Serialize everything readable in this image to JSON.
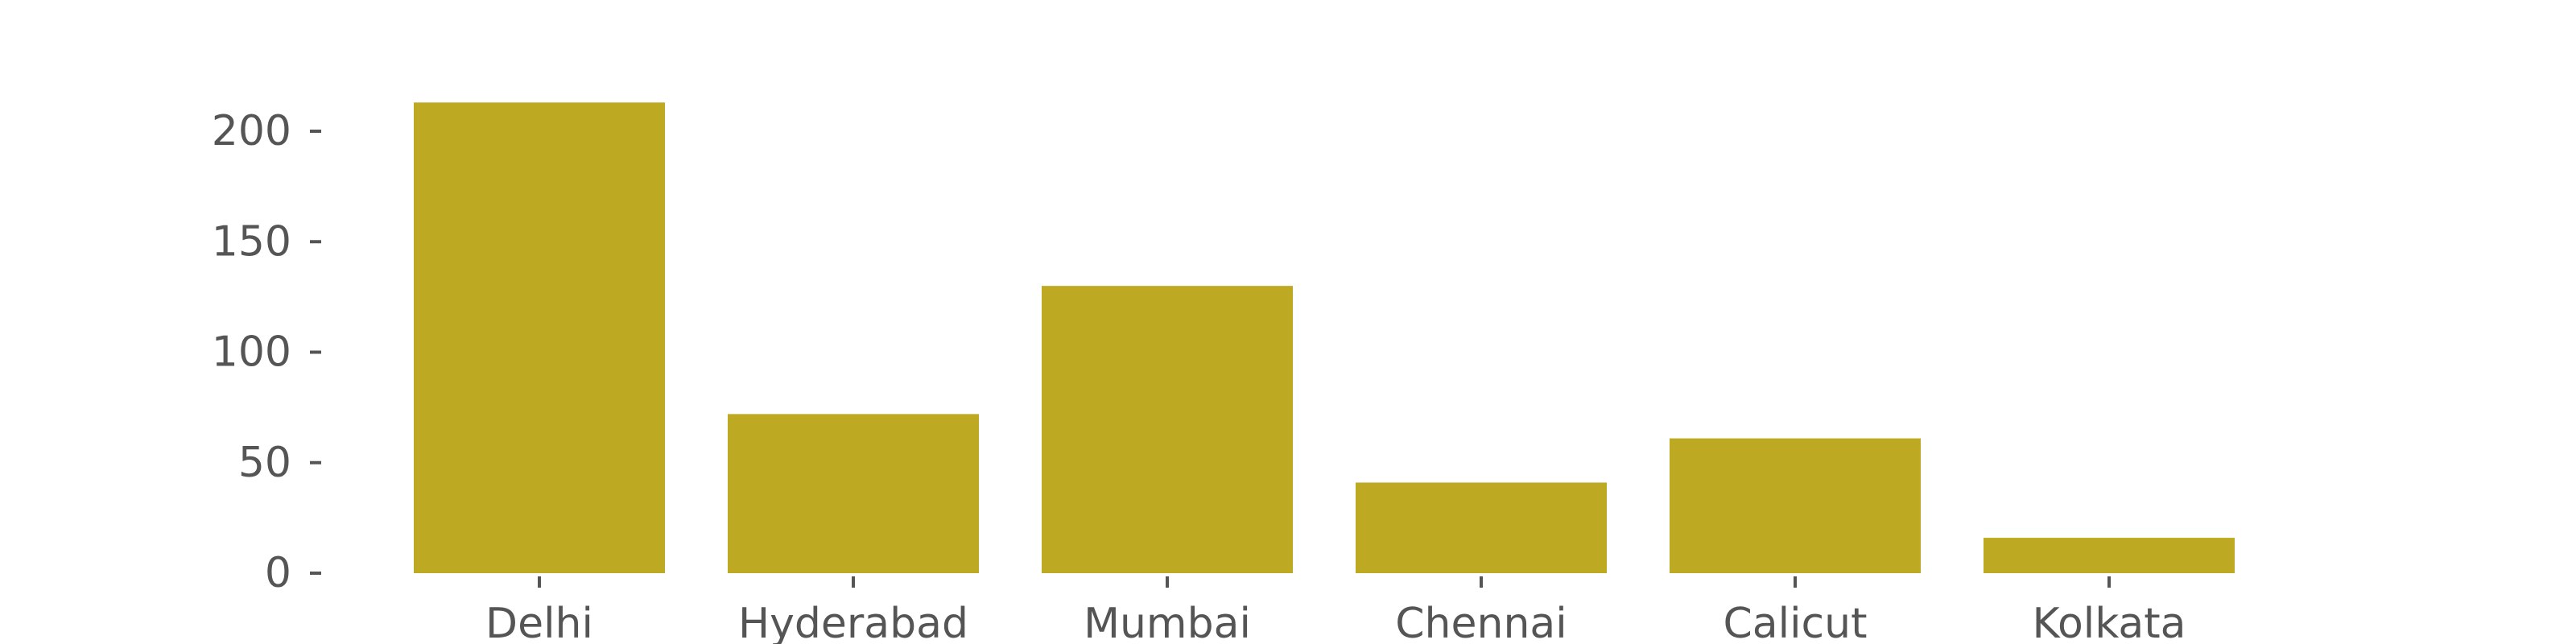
{
  "chart_data": {
    "type": "bar",
    "title": "",
    "xlabel": "",
    "ylabel": "",
    "categories": [
      "Delhi",
      "Hyderabad",
      "Mumbai",
      "Chennai",
      "Calicut",
      "Kolkata"
    ],
    "values": [
      213,
      72,
      130,
      41,
      61,
      16
    ],
    "ylim": [
      0,
      225
    ],
    "yticks": [
      0,
      50,
      100,
      150,
      200
    ],
    "ytick_labels": [
      "0",
      "50",
      "100",
      "150",
      "200"
    ],
    "bar_color": "#bdaa22",
    "text_color": "#555555",
    "grid": false,
    "legend": "none"
  }
}
